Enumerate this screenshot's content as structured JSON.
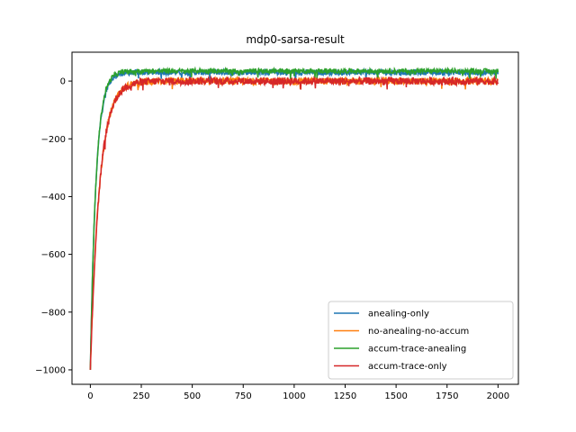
{
  "chart_data": {
    "type": "line",
    "title": "mdp0-sarsa-result",
    "xlabel": "",
    "ylabel": "",
    "xlim": [
      -90,
      2100
    ],
    "ylim": [
      -1050,
      100
    ],
    "xticks": [
      0,
      250,
      500,
      750,
      1000,
      1250,
      1500,
      1750,
      2000
    ],
    "yticks": [
      0,
      -200,
      -400,
      -600,
      -800,
      -1000
    ],
    "xtick_labels": [
      "0",
      "250",
      "500",
      "750",
      "1000",
      "1250",
      "1500",
      "1750",
      "2000"
    ],
    "ytick_labels": [
      "0",
      "−200",
      "−400",
      "−600",
      "−800",
      "−1000"
    ],
    "grid": false,
    "legend_position": "lower-right",
    "series": [
      {
        "name": "anealing-only",
        "color": "#1f77b4",
        "level": 30,
        "noise": 9,
        "start": -1000,
        "rate": 28
      },
      {
        "name": "no-anealing-no-accum",
        "color": "#ff7f0e",
        "level": 0,
        "noise": 12,
        "start": -1000,
        "rate": 45
      },
      {
        "name": "accum-trace-anealing",
        "color": "#2ca02c",
        "level": 35,
        "noise": 8,
        "start": -1000,
        "rate": 28
      },
      {
        "name": "accum-trace-only",
        "color": "#d62728",
        "level": 0,
        "noise": 13,
        "start": -1000,
        "rate": 45
      }
    ],
    "n_points": 2000
  }
}
